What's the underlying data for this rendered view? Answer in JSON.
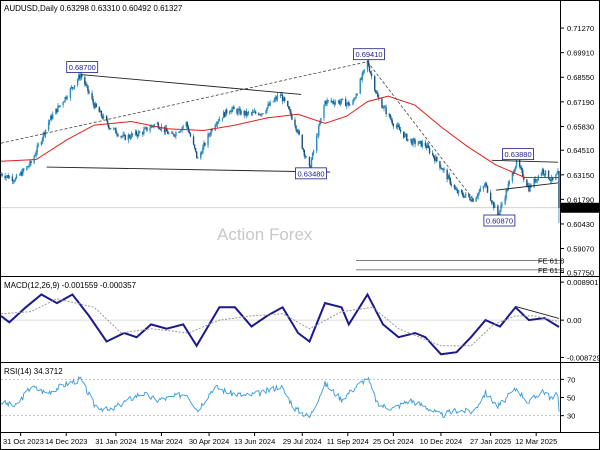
{
  "chart_data": [
    {
      "type": "candlestick",
      "header": "AUDUSD,Daily  0.63298 0.63310 0.60492 0.61327",
      "watermark": "Action Forex",
      "y_ticks": [
        "0.71270",
        "0.69910",
        "0.68550",
        "0.67190",
        "0.65830",
        "0.64510",
        "0.63150",
        "0.61790",
        "0.60430",
        "0.59070",
        "0.57750"
      ],
      "ylim": [
        0.5755,
        0.7205
      ],
      "x_ticks": [
        "31 Oct 2023",
        "14 Dec 2023",
        "31 Jan 2024",
        "15 Mar 2024",
        "30 Apr 2024",
        "13 Jun 2024",
        "29 Jul 2024",
        "11 Sep 2024",
        "25 Oct 2024",
        "10 Dec 2024",
        "27 Jan 2025",
        "12 Mar 2025"
      ],
      "x_range": [
        "2023-10-12",
        "2025-04-04"
      ],
      "current_price": {
        "value": 0.61327,
        "label": "0.61327"
      },
      "annotations": [
        {
          "text": "0.68700",
          "date": "2023-12-28",
          "price": 0.687
        },
        {
          "text": "0.69410",
          "date": "2024-09-30",
          "price": 0.6941
        },
        {
          "text": "0.63480",
          "date": "2024-08-05",
          "price": 0.6348
        },
        {
          "text": "0.60870",
          "date": "2025-02-03",
          "price": 0.6087
        },
        {
          "text": "0.63880",
          "date": "2025-02-21",
          "price": 0.6388
        }
      ],
      "fe_labels": [
        {
          "text": "FE 61.8",
          "price": 0.584
        },
        {
          "text": "FE 61.8",
          "price": 0.5789
        }
      ],
      "price_path": [
        [
          "2023-10-12",
          0.632
        ],
        [
          "2023-10-26",
          0.629
        ],
        [
          "2023-11-10",
          0.638
        ],
        [
          "2023-11-28",
          0.662
        ],
        [
          "2023-12-14",
          0.675
        ],
        [
          "2023-12-28",
          0.687
        ],
        [
          "2024-01-10",
          0.67
        ],
        [
          "2024-01-25",
          0.658
        ],
        [
          "2024-02-08",
          0.652
        ],
        [
          "2024-02-25",
          0.655
        ],
        [
          "2024-03-10",
          0.66
        ],
        [
          "2024-03-25",
          0.653
        ],
        [
          "2024-04-08",
          0.66
        ],
        [
          "2024-04-19",
          0.64
        ],
        [
          "2024-05-05",
          0.66
        ],
        [
          "2024-05-20",
          0.668
        ],
        [
          "2024-06-05",
          0.665
        ],
        [
          "2024-06-20",
          0.666
        ],
        [
          "2024-07-08",
          0.676
        ],
        [
          "2024-07-22",
          0.66
        ],
        [
          "2024-08-05",
          0.6348
        ],
        [
          "2024-08-20",
          0.672
        ],
        [
          "2024-09-05",
          0.672
        ],
        [
          "2024-09-15",
          0.67
        ],
        [
          "2024-09-30",
          0.6941
        ],
        [
          "2024-10-10",
          0.674
        ],
        [
          "2024-10-25",
          0.66
        ],
        [
          "2024-11-10",
          0.65
        ],
        [
          "2024-11-25",
          0.648
        ],
        [
          "2024-12-10",
          0.636
        ],
        [
          "2024-12-25",
          0.622
        ],
        [
          "2025-01-10",
          0.618
        ],
        [
          "2025-01-22",
          0.626
        ],
        [
          "2025-02-03",
          0.6087
        ],
        [
          "2025-02-21",
          0.6388
        ],
        [
          "2025-03-05",
          0.624
        ],
        [
          "2025-03-18",
          0.634
        ],
        [
          "2025-03-28",
          0.628
        ],
        [
          "2025-04-02",
          0.632
        ],
        [
          "2025-04-03",
          0.6133
        ]
      ],
      "moving_average": [
        [
          "2023-10-12",
          0.639
        ],
        [
          "2023-11-15",
          0.64
        ],
        [
          "2023-12-15",
          0.651
        ],
        [
          "2024-01-10",
          0.659
        ],
        [
          "2024-02-15",
          0.661
        ],
        [
          "2024-03-20",
          0.657
        ],
        [
          "2024-04-25",
          0.656
        ],
        [
          "2024-05-25",
          0.659
        ],
        [
          "2024-06-25",
          0.663
        ],
        [
          "2024-07-25",
          0.665
        ],
        [
          "2024-08-20",
          0.66
        ],
        [
          "2024-09-10",
          0.664
        ],
        [
          "2024-09-30",
          0.672
        ],
        [
          "2024-10-20",
          0.675
        ],
        [
          "2024-11-15",
          0.67
        ],
        [
          "2024-12-10",
          0.658
        ],
        [
          "2025-01-05",
          0.647
        ],
        [
          "2025-02-01",
          0.637
        ],
        [
          "2025-03-01",
          0.63
        ],
        [
          "2025-04-03",
          0.63
        ]
      ],
      "trendlines": [
        {
          "from": [
            "2023-12-28",
            0.687
          ],
          "to": [
            "2024-07-28",
            0.676
          ],
          "style": "solid"
        },
        {
          "from": [
            "2023-11-25",
            0.6358
          ],
          "to": [
            "2024-08-25",
            0.633
          ],
          "style": "solid"
        },
        {
          "from": [
            "2023-10-12",
            0.649
          ],
          "to": [
            "2024-09-30",
            0.6941
          ],
          "style": "dashed"
        },
        {
          "from": [
            "2024-09-30",
            0.6941
          ],
          "to": [
            "2025-01-10",
            0.618
          ],
          "style": "dashed"
        },
        {
          "from": [
            "2025-01-28",
            0.6395
          ],
          "to": [
            "2025-04-02",
            0.6385
          ],
          "style": "solid"
        },
        {
          "from": [
            "2025-02-01",
            0.623
          ],
          "to": [
            "2025-04-02",
            0.627
          ],
          "style": "solid"
        }
      ]
    },
    {
      "type": "line",
      "header": "MACD(12,26,9) -0.001559 -0.000357",
      "y_ticks": [
        "0.008901",
        "0.00",
        "-0.008729"
      ],
      "ylim": [
        -0.0098,
        0.0101
      ],
      "series": [
        {
          "role": "macd",
          "points": [
            [
              "2023-10-12",
              0.001
            ],
            [
              "2023-10-20",
              -0.0005
            ],
            [
              "2023-11-05",
              0.003
            ],
            [
              "2023-11-20",
              0.006
            ],
            [
              "2023-12-05",
              0.004
            ],
            [
              "2023-12-20",
              0.006
            ],
            [
              "2024-01-05",
              0.001
            ],
            [
              "2024-01-22",
              -0.005
            ],
            [
              "2024-02-08",
              -0.003
            ],
            [
              "2024-02-20",
              -0.004
            ],
            [
              "2024-03-05",
              -0.001
            ],
            [
              "2024-03-20",
              -0.002
            ],
            [
              "2024-04-05",
              -0.001
            ],
            [
              "2024-04-18",
              -0.006
            ],
            [
              "2024-05-10",
              0.003
            ],
            [
              "2024-05-25",
              0.003
            ],
            [
              "2024-06-10",
              -0.0015
            ],
            [
              "2024-06-25",
              0.001
            ],
            [
              "2024-07-10",
              0.003
            ],
            [
              "2024-07-25",
              -0.003
            ],
            [
              "2024-08-05",
              -0.005
            ],
            [
              "2024-08-20",
              0.004
            ],
            [
              "2024-09-05",
              0.003
            ],
            [
              "2024-09-12",
              -0.001
            ],
            [
              "2024-09-30",
              0.006
            ],
            [
              "2024-10-15",
              -0.001
            ],
            [
              "2024-10-30",
              -0.004
            ],
            [
              "2024-11-15",
              -0.003
            ],
            [
              "2024-11-25",
              -0.004
            ],
            [
              "2024-12-10",
              -0.008
            ],
            [
              "2024-12-25",
              -0.0075
            ],
            [
              "2025-01-08",
              -0.004
            ],
            [
              "2025-01-22",
              0.0
            ],
            [
              "2025-02-05",
              -0.0015
            ],
            [
              "2025-02-20",
              0.003
            ],
            [
              "2025-03-05",
              0.0
            ],
            [
              "2025-03-20",
              0.0005
            ],
            [
              "2025-04-03",
              -0.0016
            ]
          ]
        },
        {
          "role": "signal",
          "points": [
            [
              "2023-10-12",
              0.0015
            ],
            [
              "2023-11-10",
              0.002
            ],
            [
              "2023-12-05",
              0.005
            ],
            [
              "2024-01-10",
              0.003
            ],
            [
              "2024-02-05",
              -0.003
            ],
            [
              "2024-03-05",
              -0.002
            ],
            [
              "2024-04-10",
              -0.003
            ],
            [
              "2024-05-10",
              0.0
            ],
            [
              "2024-06-10",
              0.001
            ],
            [
              "2024-07-10",
              0.0015
            ],
            [
              "2024-08-05",
              -0.002
            ],
            [
              "2024-09-05",
              0.002
            ],
            [
              "2024-10-05",
              0.003
            ],
            [
              "2024-10-30",
              -0.002
            ],
            [
              "2024-12-10",
              -0.006
            ],
            [
              "2025-01-08",
              -0.006
            ],
            [
              "2025-01-30",
              -0.001
            ],
            [
              "2025-02-20",
              0.001
            ],
            [
              "2025-03-10",
              0.001
            ],
            [
              "2025-04-03",
              -0.0004
            ]
          ]
        }
      ],
      "trendlines": [
        {
          "from": [
            "2025-02-20",
            0.0032
          ],
          "to": [
            "2025-04-03",
            0.0004
          ],
          "style": "solid"
        }
      ]
    },
    {
      "type": "line",
      "header": "RSI(14) 34.3712",
      "y_ticks": [
        "70",
        "50",
        "30"
      ],
      "ylim": [
        12,
        88
      ],
      "levels": [
        70,
        30
      ],
      "series": [
        {
          "role": "rsi",
          "points": [
            [
              "2023-10-12",
              45
            ],
            [
              "2023-10-26",
              40
            ],
            [
              "2023-11-10",
              62
            ],
            [
              "2023-11-25",
              55
            ],
            [
              "2023-12-14",
              65
            ],
            [
              "2023-12-28",
              70
            ],
            [
              "2024-01-10",
              42
            ],
            [
              "2024-01-25",
              35
            ],
            [
              "2024-02-08",
              45
            ],
            [
              "2024-02-25",
              55
            ],
            [
              "2024-03-10",
              47
            ],
            [
              "2024-03-25",
              50
            ],
            [
              "2024-04-08",
              55
            ],
            [
              "2024-04-19",
              36
            ],
            [
              "2024-05-05",
              62
            ],
            [
              "2024-05-20",
              55
            ],
            [
              "2024-06-05",
              52
            ],
            [
              "2024-06-20",
              55
            ],
            [
              "2024-07-08",
              63
            ],
            [
              "2024-07-22",
              38
            ],
            [
              "2024-08-05",
              28
            ],
            [
              "2024-08-20",
              65
            ],
            [
              "2024-09-05",
              48
            ],
            [
              "2024-09-15",
              58
            ],
            [
              "2024-09-30",
              72
            ],
            [
              "2024-10-10",
              42
            ],
            [
              "2024-10-25",
              38
            ],
            [
              "2024-11-10",
              47
            ],
            [
              "2024-11-25",
              40
            ],
            [
              "2024-12-10",
              30
            ],
            [
              "2024-12-25",
              36
            ],
            [
              "2025-01-10",
              34
            ],
            [
              "2025-01-22",
              55
            ],
            [
              "2025-02-03",
              40
            ],
            [
              "2025-02-21",
              60
            ],
            [
              "2025-03-05",
              44
            ],
            [
              "2025-03-18",
              58
            ],
            [
              "2025-03-28",
              48
            ],
            [
              "2025-04-02",
              55
            ],
            [
              "2025-04-03",
              34.37
            ]
          ]
        }
      ]
    }
  ]
}
